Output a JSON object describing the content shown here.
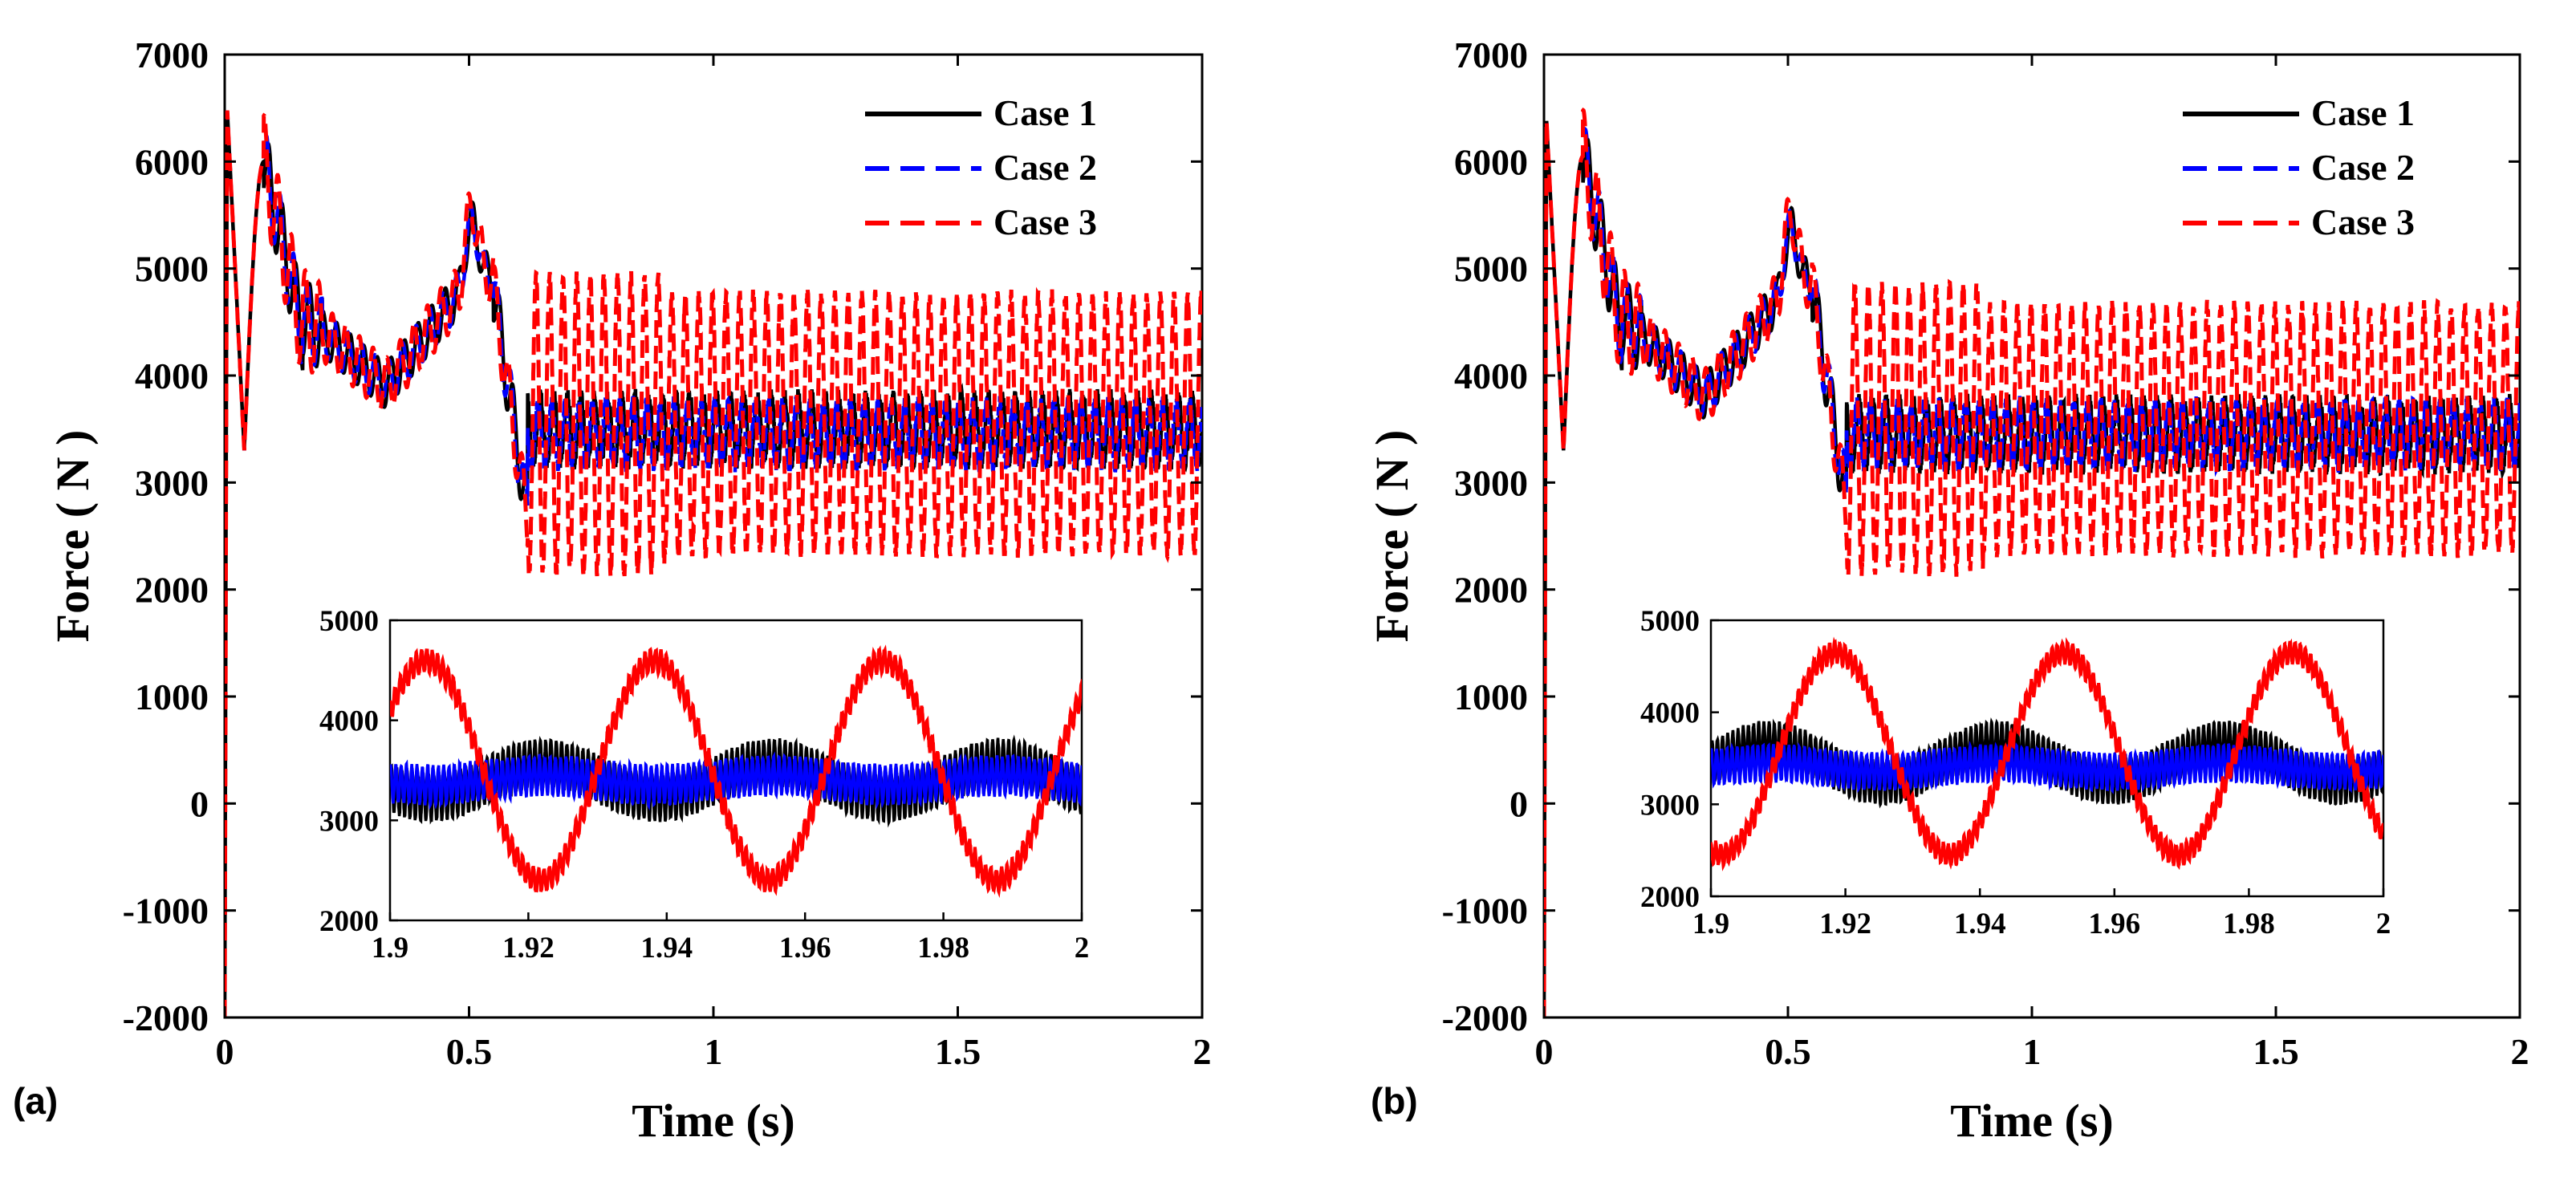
{
  "colors": {
    "case1": "#000000",
    "case2": "#0000ff",
    "case3": "#ff0000"
  },
  "chart_data": [
    {
      "panel_label": "(a)",
      "type": "line",
      "title": "",
      "xlabel": "Time (s)",
      "ylabel": "Force ( N )",
      "xlim": [
        0,
        2
      ],
      "ylim": [
        -2000,
        7000
      ],
      "xticks": [
        "0",
        "0.5",
        "1",
        "1.5",
        "2"
      ],
      "yticks": [
        "-2000",
        "-1000",
        "0",
        "1000",
        "2000",
        "3000",
        "4000",
        "5000",
        "6000",
        "7000"
      ],
      "legend_position": "top-right",
      "series": [
        {
          "name": "Case 1",
          "style": "solid",
          "color": "#000000",
          "steady_mean": 3500,
          "steady_amplitude": 300
        },
        {
          "name": "Case 2",
          "style": "dashed",
          "color": "#0000ff",
          "steady_mean": 3450,
          "steady_amplitude": 280
        },
        {
          "name": "Case 3",
          "style": "dashed",
          "color": "#ff0000",
          "steady_mean": 3550,
          "steady_amplitude": 1200
        }
      ],
      "key_points": {
        "start_peak": [
          0.0,
          6500
        ],
        "first_peak": [
          0.08,
          6000
        ],
        "second_peak": [
          0.16,
          5350
        ],
        "trough": [
          0.33,
          3900
        ],
        "transient_peak": [
          0.51,
          5550
        ],
        "dip": [
          0.6,
          2700
        ],
        "case3_min": [
          0.6,
          1800
        ]
      },
      "inset": {
        "xlim": [
          1.9,
          2
        ],
        "ylim": [
          2000,
          5000
        ],
        "xticks": [
          "1.9",
          "1.92",
          "1.94",
          "1.96",
          "1.98",
          "2"
        ],
        "yticks": [
          "2000",
          "3000",
          "4000",
          "5000"
        ],
        "series": [
          {
            "name": "Case 1",
            "mean": 3400,
            "amplitude": 250,
            "period": 0.033,
            "phase": 0.0
          },
          {
            "name": "Case 2",
            "mean": 3400,
            "amplitude": 150,
            "period": 0.033,
            "phase": 0.0
          },
          {
            "name": "Case 3",
            "mean": 3500,
            "amplitude": 1100,
            "period": 0.033,
            "phase": 1.93
          }
        ]
      }
    },
    {
      "panel_label": "(b)",
      "type": "line",
      "title": "",
      "xlabel": "Time (s)",
      "ylabel": "Force ( N )",
      "xlim": [
        0,
        2
      ],
      "ylim": [
        -2000,
        7000
      ],
      "xticks": [
        "0",
        "0.5",
        "1",
        "1.5",
        "2"
      ],
      "yticks": [
        "-2000",
        "-1000",
        "0",
        "1000",
        "2000",
        "3000",
        "4000",
        "5000",
        "6000",
        "7000"
      ],
      "legend_position": "top-right",
      "series": [
        {
          "name": "Case 1",
          "style": "solid",
          "color": "#000000",
          "steady_mean": 3450,
          "steady_amplitude": 300
        },
        {
          "name": "Case 2",
          "style": "dashed",
          "color": "#0000ff",
          "steady_mean": 3450,
          "steady_amplitude": 280
        },
        {
          "name": "Case 3",
          "style": "dashed",
          "color": "#ff0000",
          "steady_mean": 3500,
          "steady_amplitude": 1150
        }
      ],
      "key_points": {
        "start_peak": [
          0.0,
          6400
        ],
        "first_peak": [
          0.08,
          6050
        ],
        "second_peak": [
          0.16,
          5300
        ],
        "trough": [
          0.33,
          3800
        ],
        "transient_peak": [
          0.5,
          5500
        ],
        "dip": [
          0.6,
          2800
        ],
        "case3_min": [
          0.58,
          1900
        ]
      },
      "inset": {
        "xlim": [
          1.9,
          2
        ],
        "ylim": [
          2000,
          5000
        ],
        "xticks": [
          "1.9",
          "1.92",
          "1.94",
          "1.96",
          "1.98",
          "2"
        ],
        "yticks": [
          "2000",
          "3000",
          "4000",
          "5000"
        ],
        "series": [
          {
            "name": "Case 1",
            "mean": 3450,
            "amplitude": 300,
            "period": 0.034,
            "phase": 1.9
          },
          {
            "name": "Case 2",
            "mean": 3400,
            "amplitude": 150,
            "period": 0.034,
            "phase": 1.9
          },
          {
            "name": "Case 3",
            "mean": 3550,
            "amplitude": 1100,
            "period": 0.034,
            "phase": 1.91
          }
        ]
      }
    }
  ]
}
